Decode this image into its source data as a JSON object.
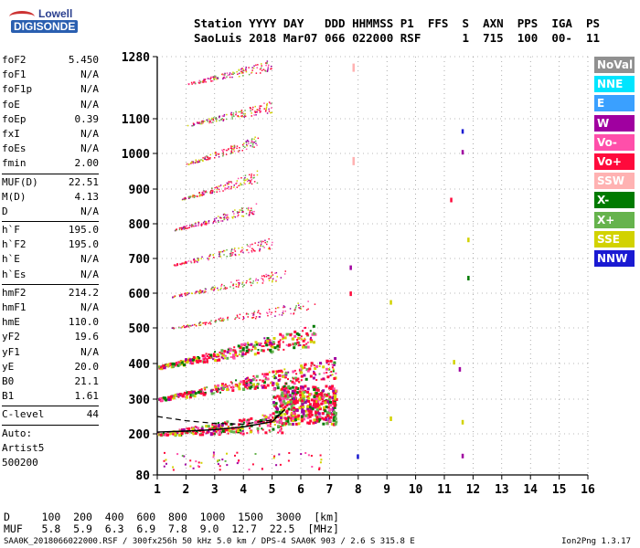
{
  "logo": {
    "line1": "Lowell",
    "line2": "DIGISONDE"
  },
  "header": {
    "line1": "Station YYYY DAY   DDD HHMMSS P1  FFS  S  AXN  PPS  IGA  PS",
    "line2": "SaoLuis 2018 Mar07 066 022000 RSF      1  715  100  00-  11"
  },
  "params": {
    "group1": [
      {
        "name": "foF2",
        "value": "5.450"
      },
      {
        "name": "foF1",
        "value": "N/A"
      },
      {
        "name": "foF1p",
        "value": "N/A"
      },
      {
        "name": "foE",
        "value": "N/A"
      },
      {
        "name": "foEp",
        "value": "0.39"
      },
      {
        "name": "fxI",
        "value": "N/A"
      },
      {
        "name": "foEs",
        "value": "N/A"
      },
      {
        "name": "fmin",
        "value": "2.00"
      }
    ],
    "group2": [
      {
        "name": "MUF(D)",
        "value": "22.51"
      },
      {
        "name": "M(D)",
        "value": "4.13"
      },
      {
        "name": "D",
        "value": "N/A"
      }
    ],
    "group3": [
      {
        "name": "h`F",
        "value": "195.0"
      },
      {
        "name": "h`F2",
        "value": "195.0"
      },
      {
        "name": "h`E",
        "value": "N/A"
      },
      {
        "name": "h`Es",
        "value": "N/A"
      }
    ],
    "group4": [
      {
        "name": "hmF2",
        "value": "214.2"
      },
      {
        "name": "hmF1",
        "value": "N/A"
      },
      {
        "name": "hmE",
        "value": "110.0"
      },
      {
        "name": "yF2",
        "value": "19.6"
      },
      {
        "name": "yF1",
        "value": "N/A"
      },
      {
        "name": "yE",
        "value": "20.0"
      },
      {
        "name": "B0",
        "value": "21.1"
      },
      {
        "name": "B1",
        "value": "1.61"
      }
    ],
    "group5": [
      {
        "name": "C-level",
        "value": "44"
      }
    ],
    "auto_lines": [
      "Auto:",
      "Artist5",
      "500200"
    ]
  },
  "legend": [
    {
      "label": "NoVal",
      "color": "#909090"
    },
    {
      "label": "NNE",
      "color": "#00e5ff"
    },
    {
      "label": "E",
      "color": "#3aa0ff"
    },
    {
      "label": "W",
      "color": "#a000a0"
    },
    {
      "label": "Vo-",
      "color": "#ff4faa"
    },
    {
      "label": "Vo+",
      "color": "#ff0a3c"
    },
    {
      "label": "SSW",
      "color": "#ffb2b2"
    },
    {
      "label": "X-",
      "color": "#007a00"
    },
    {
      "label": "X+",
      "color": "#66b34d"
    },
    {
      "label": "SSE",
      "color": "#d2d200"
    },
    {
      "label": "NNW",
      "color": "#1a1ad2"
    }
  ],
  "chart_data": {
    "type": "scatter",
    "xlabel": "",
    "ylabel": "",
    "xlim": [
      1,
      16
    ],
    "ylim": [
      80,
      1280
    ],
    "x_ticks": [
      "1",
      "2",
      "3",
      "4",
      "5",
      "6",
      "7",
      "8",
      "9",
      "10",
      "11",
      "12",
      "13",
      "14",
      "15",
      "16"
    ],
    "y_ticks": [
      {
        "value": 80,
        "label": "80"
      },
      {
        "value": 200,
        "label": "200"
      },
      {
        "value": 300,
        "label": "300"
      },
      {
        "value": 400,
        "label": "400"
      },
      {
        "value": 500,
        "label": "500"
      },
      {
        "value": 600,
        "label": "600"
      },
      {
        "value": 700,
        "label": "700"
      },
      {
        "value": 800,
        "label": "800"
      },
      {
        "value": 900,
        "label": "900"
      },
      {
        "value": 1000,
        "label": "1000"
      },
      {
        "value": 1100,
        "label": "1100"
      },
      {
        "value": 1280,
        "label": "1280"
      }
    ],
    "scale": "nonlinear height axis (Digisonde ionogram)",
    "grid": true,
    "ionogram_traces": [
      {
        "name": "hop1",
        "x_start": 1.0,
        "x_end": 5.4,
        "h_start": 200,
        "h_end": 225
      },
      {
        "name": "hop2",
        "x_start": 1.0,
        "x_end": 7.2,
        "h_start": 300,
        "h_end": 380
      },
      {
        "name": "hop3",
        "x_start": 1.0,
        "x_end": 6.5,
        "h_start": 390,
        "h_end": 470
      },
      {
        "name": "hop4",
        "x_start": 1.5,
        "x_end": 6.5,
        "h_start": 500,
        "h_end": 560
      },
      {
        "name": "hop5",
        "x_start": 1.5,
        "x_end": 5.5,
        "h_start": 590,
        "h_end": 650
      },
      {
        "name": "hop6",
        "x_start": 1.5,
        "x_end": 5.0,
        "h_start": 680,
        "h_end": 740
      },
      {
        "name": "hop7",
        "x_start": 1.5,
        "x_end": 4.5,
        "h_start": 780,
        "h_end": 840
      },
      {
        "name": "hop8",
        "x_start": 1.8,
        "x_end": 4.5,
        "h_start": 870,
        "h_end": 930
      },
      {
        "name": "hop9",
        "x_start": 2.0,
        "x_end": 4.5,
        "h_start": 970,
        "h_end": 1030
      },
      {
        "name": "hop10",
        "x_start": 2.0,
        "x_end": 5.0,
        "h_start": 1080,
        "h_end": 1130
      },
      {
        "name": "hop11",
        "x_start": 2.0,
        "x_end": 5.0,
        "h_start": 1200,
        "h_end": 1250
      }
    ],
    "profile_fit": {
      "solid": [
        [
          1.0,
          205
        ],
        [
          2.0,
          208
        ],
        [
          3.0,
          212
        ],
        [
          4.0,
          220
        ],
        [
          5.0,
          235
        ],
        [
          5.45,
          270
        ]
      ],
      "dashed": [
        [
          1.0,
          250
        ],
        [
          2.0,
          238
        ],
        [
          3.0,
          230
        ],
        [
          4.0,
          228
        ],
        [
          5.0,
          240
        ],
        [
          5.45,
          270
        ]
      ]
    },
    "scattered_echoes": [
      {
        "x": 7.8,
        "h": 1260,
        "color": "#ffb2b2"
      },
      {
        "x": 7.8,
        "h": 990,
        "color": "#ffb2b2"
      },
      {
        "x": 11.6,
        "h": 1070,
        "color": "#1a1ad2"
      },
      {
        "x": 11.6,
        "h": 1010,
        "color": "#a000a0"
      },
      {
        "x": 11.2,
        "h": 875,
        "color": "#ff0a3c"
      },
      {
        "x": 11.8,
        "h": 760,
        "color": "#d2d200"
      },
      {
        "x": 11.8,
        "h": 650,
        "color": "#007a00"
      },
      {
        "x": 9.1,
        "h": 580,
        "color": "#d2d200"
      },
      {
        "x": 11.3,
        "h": 410,
        "color": "#d2d200"
      },
      {
        "x": 11.5,
        "h": 390,
        "color": "#a000a0"
      },
      {
        "x": 9.1,
        "h": 250,
        "color": "#d2d200"
      },
      {
        "x": 11.6,
        "h": 240,
        "color": "#d2d200"
      },
      {
        "x": 11.6,
        "h": 142,
        "color": "#a000a0"
      },
      {
        "x": 7.95,
        "h": 140,
        "color": "#1a1ad2"
      },
      {
        "x": 7.7,
        "h": 680,
        "color": "#a000a0"
      },
      {
        "x": 7.7,
        "h": 605,
        "color": "#ff0a3c"
      }
    ]
  },
  "bottom_table": {
    "d_row": "D     100  200  400  600  800  1000  1500  3000  [km]",
    "muf_row": "MUF   5.8  5.9  6.3  6.9  7.8  9.0  12.7  22.5  [MHz]"
  },
  "footer": "SAA0K_2018066022000.RSF / 300fx256h 50 kHz 5.0 km / DPS-4 SAA0K 903 / 2.6 S 315.8 E",
  "version": "Ion2Png 1.3.17"
}
